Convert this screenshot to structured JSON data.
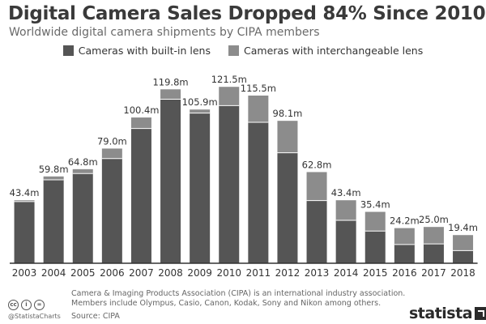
{
  "title": "Digital Camera Sales Dropped 84% Since 2010",
  "subtitle": "Worldwide digital camera shipments by CIPA members",
  "colors": {
    "builtin": "#555555",
    "interchangeable": "#8c8c8c",
    "axis": "#333333"
  },
  "footnote": "Camera & Imaging Products Association (CIPA) is an international industry association. Members include Olympus, Casio, Canon, Kodak, Sony and Nikon among others.",
  "source": "Source: CIPA",
  "handle": "@StatistaCharts",
  "brand": "statista",
  "chart_data": {
    "type": "bar",
    "stacked": true,
    "categories": [
      "2003",
      "2004",
      "2005",
      "2006",
      "2007",
      "2008",
      "2009",
      "2010",
      "2011",
      "2012",
      "2013",
      "2014",
      "2015",
      "2016",
      "2017",
      "2018"
    ],
    "totals": [
      43.4,
      59.8,
      64.8,
      79.0,
      100.4,
      119.8,
      105.9,
      121.5,
      115.5,
      98.1,
      62.8,
      43.4,
      35.4,
      24.2,
      25.0,
      19.4
    ],
    "total_labels": [
      "43.4m",
      "59.8m",
      "64.8m",
      "79.0m",
      "100.4m",
      "119.8m",
      "105.9m",
      "121.5m",
      "115.5m",
      "98.1m",
      "62.8m",
      "43.4m",
      "35.4m",
      "24.2m",
      "25.0m",
      "19.4m"
    ],
    "series": [
      {
        "name": "Cameras with built-in lens",
        "values": [
          42.5,
          57.5,
          61.8,
          72.1,
          92.8,
          113.0,
          103.4,
          108.6,
          97.1,
          76.1,
          43.2,
          29.6,
          22.2,
          12.9,
          13.3,
          8.7
        ]
      },
      {
        "name": "Cameras with interchangeable lens",
        "values": [
          0.9,
          2.3,
          3.0,
          6.9,
          7.6,
          6.8,
          2.5,
          12.9,
          18.4,
          22.0,
          19.6,
          13.8,
          13.2,
          11.3,
          11.7,
          10.7
        ]
      }
    ],
    "ylim": [
      0,
      130
    ],
    "grid": false,
    "legend": "top-center"
  }
}
